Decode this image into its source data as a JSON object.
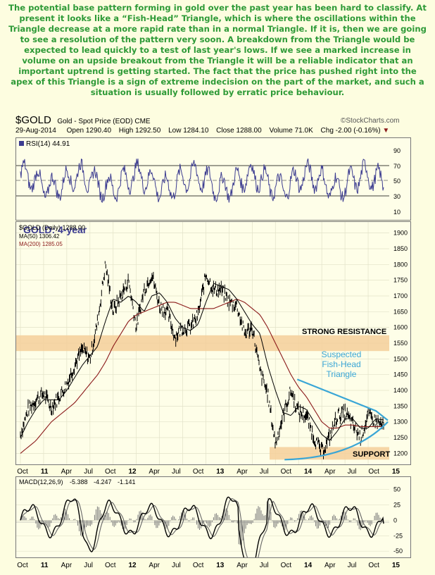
{
  "commentary": "The potential base pattern forming in gold over the past year has been hard to classify. At present it looks like a “Fish-Head” Triangle, which is where the oscillations within the Triangle decrease at a more rapid rate than in a normal Triangle. If it is, then we are going to see a resolution of the pattern very soon. A breakdown from the Triangle would be expected to lead quickly to a test of last year's lows. If we see a marked increase in volume on an upside breakout from the Triangle it will be a reliable indicator that an important uptrend is getting started. The fact that the price has pushed right into the apex of this Triangle is a sign of extreme indecision on the part of the market, and such a situation is usually followed by erratic price behaviour.",
  "header": {
    "symbol": "$GOLD",
    "name": "Gold - Spot Price (EOD) CME",
    "watermark": "©StockCharts.com",
    "date": "29-Aug-2014",
    "open_label": "Open",
    "open": "1290.40",
    "high_label": "High",
    "high": "1292.50",
    "low_label": "Low",
    "low": "1284.10",
    "close_label": "Close",
    "close": "1288.00",
    "volume_label": "Volume",
    "volume": "71.0K",
    "chg_label": "Chg",
    "chg": "-2.00 (-0.16%)"
  },
  "colors": {
    "commentary": "#2e9a37",
    "price": "#000000",
    "ma50": "#000000",
    "ma200": "#8b1a1a",
    "rsi": "#3c3c90",
    "band": "#f5cf9a",
    "triangle": "#3aa6d6",
    "annotation": "#3aa6d6",
    "macd_hist": "#777777"
  },
  "rsi_panel": {
    "label": "RSI(14) 44.91",
    "ticks": [
      "90",
      "70",
      "50",
      "30",
      "10"
    ]
  },
  "price_panel": {
    "badge": "GOLD: 4-year",
    "legend_price": "$GOLD (Daily) 1288.00",
    "legend_ma50": "MA(50) 1306.42",
    "legend_ma200": "MA(200) 1285.05",
    "ticks": [
      "1900",
      "1850",
      "1800",
      "1750",
      "1700",
      "1650",
      "1600",
      "1550",
      "1500",
      "1450",
      "1400",
      "1350",
      "1300",
      "1250",
      "1200"
    ],
    "resistance_label": "STRONG RESISTANCE",
    "support_label": "SUPPORT",
    "annotation": [
      "Suspected",
      "Fish-Head",
      "Triangle"
    ]
  },
  "macd_panel": {
    "label": "MACD(12,26,9)",
    "value1": "-5.388",
    "value2": "-4.247",
    "value3": "-1.141",
    "ticks": [
      "50",
      "25",
      "0",
      "-25",
      "-50"
    ]
  },
  "x_axis": [
    "Oct",
    "11",
    "Apr",
    "Jul",
    "Oct",
    "12",
    "Apr",
    "Jul",
    "Oct",
    "13",
    "Apr",
    "Jul",
    "Oct",
    "14",
    "Apr",
    "Jul",
    "Oct",
    "15"
  ],
  "chart_data": {
    "type": "line",
    "xlabel": "",
    "ylabel": "",
    "x": [
      "2010-09",
      "2010-10",
      "2010-11",
      "2010-12",
      "2011-01",
      "2011-02",
      "2011-03",
      "2011-04",
      "2011-05",
      "2011-06",
      "2011-07",
      "2011-08",
      "2011-09",
      "2011-10",
      "2011-11",
      "2011-12",
      "2012-01",
      "2012-02",
      "2012-03",
      "2012-04",
      "2012-05",
      "2012-06",
      "2012-07",
      "2012-08",
      "2012-09",
      "2012-10",
      "2012-11",
      "2012-12",
      "2013-01",
      "2013-02",
      "2013-03",
      "2013-04",
      "2013-05",
      "2013-06",
      "2013-07",
      "2013-08",
      "2013-09",
      "2013-10",
      "2013-11",
      "2013-12",
      "2014-01",
      "2014-02",
      "2014-03",
      "2014-04",
      "2014-05",
      "2014-06",
      "2014-07",
      "2014-08"
    ],
    "series": [
      {
        "name": "$GOLD (Daily)",
        "values": [
          1260,
          1340,
          1370,
          1390,
          1345,
          1380,
          1420,
          1480,
          1530,
          1500,
          1620,
          1800,
          1650,
          1700,
          1750,
          1600,
          1720,
          1770,
          1670,
          1650,
          1570,
          1600,
          1600,
          1640,
          1770,
          1720,
          1720,
          1680,
          1670,
          1580,
          1600,
          1460,
          1390,
          1230,
          1320,
          1400,
          1330,
          1320,
          1250,
          1205,
          1250,
          1320,
          1330,
          1290,
          1250,
          1320,
          1300,
          1288
        ]
      },
      {
        "name": "MA(50)",
        "values": [
          1250,
          1300,
          1340,
          1370,
          1370,
          1370,
          1400,
          1440,
          1480,
          1510,
          1540,
          1620,
          1690,
          1680,
          1700,
          1680,
          1650,
          1700,
          1710,
          1680,
          1630,
          1600,
          1590,
          1610,
          1680,
          1740,
          1730,
          1720,
          1690,
          1650,
          1610,
          1580,
          1480,
          1400,
          1330,
          1320,
          1350,
          1340,
          1300,
          1260,
          1240,
          1270,
          1310,
          1310,
          1280,
          1280,
          1310,
          1306
        ]
      },
      {
        "name": "MA(200)",
        "values": [
          1200,
          1220,
          1240,
          1270,
          1300,
          1320,
          1340,
          1360,
          1390,
          1420,
          1450,
          1490,
          1540,
          1580,
          1620,
          1640,
          1650,
          1660,
          1670,
          1680,
          1680,
          1670,
          1660,
          1660,
          1660,
          1660,
          1670,
          1680,
          1690,
          1680,
          1660,
          1640,
          1600,
          1550,
          1500,
          1450,
          1410,
          1380,
          1340,
          1300,
          1280,
          1280,
          1290,
          1290,
          1285,
          1285,
          1285,
          1285
        ]
      }
    ],
    "reference_bands": [
      {
        "label": "STRONG RESISTANCE",
        "from": 1525,
        "to": 1575
      },
      {
        "label": "SUPPORT",
        "from": 1180,
        "to": 1220
      }
    ],
    "ylim": [
      1165,
      1935
    ],
    "rsi": {
      "ylim": [
        0,
        100
      ],
      "guides": [
        70,
        50,
        30
      ],
      "last": 44.91
    },
    "macd": {
      "ylim": [
        -60,
        70
      ],
      "values": [
        -5.388,
        -4.247,
        -1.141
      ]
    },
    "grid": true
  }
}
